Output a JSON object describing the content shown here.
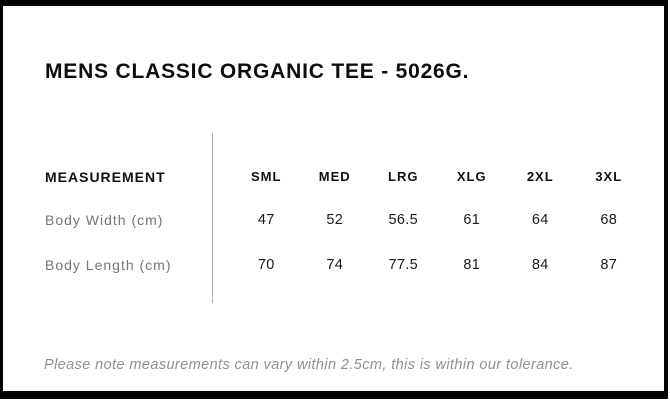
{
  "page": {
    "title": "MENS CLASSIC ORGANIC TEE - 5026G.",
    "tolerance_note": "Please note measurements can vary within 2.5cm, this is within our tolerance."
  },
  "size_chart": {
    "measurement_header": "MEASUREMENT",
    "sizes": [
      "SML",
      "MED",
      "LRG",
      "XLG",
      "2XL",
      "3XL"
    ],
    "rows": [
      {
        "label": "Body Width (cm)",
        "values": [
          "47",
          "52",
          "56.5",
          "61",
          "64",
          "68"
        ]
      },
      {
        "label": "Body Length (cm)",
        "values": [
          "70",
          "74",
          "77.5",
          "81",
          "84",
          "87"
        ]
      }
    ]
  },
  "colors": {
    "frame": "#000000",
    "background": "#ffffff",
    "title_text": "#0d0d0d",
    "header_text": "#111111",
    "value_text": "#1a1a1a",
    "label_text": "#757575",
    "note_text": "#8f8f8f",
    "divider": "#b5b5b5"
  }
}
